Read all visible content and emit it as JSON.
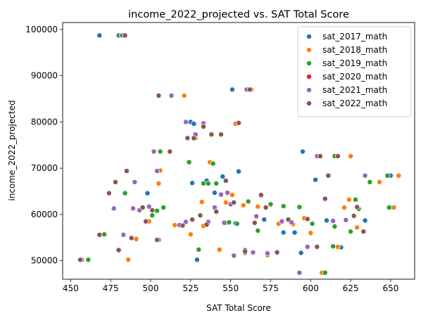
{
  "chart_data": {
    "type": "scatter",
    "title": "income_2022_projected vs. SAT Total Score",
    "xlabel": "SAT Total Score",
    "ylabel": "income_2022_projected",
    "xlim": [
      445,
      665
    ],
    "ylim": [
      46000,
      101500
    ],
    "xticks": [
      450,
      475,
      500,
      525,
      550,
      575,
      600,
      625,
      650
    ],
    "yticks": [
      50000,
      60000,
      70000,
      80000,
      90000,
      100000
    ],
    "legend_position": "top-right",
    "grid": false,
    "series": [
      {
        "name": "sat_2017_math",
        "color": "#1f77b4",
        "points": [
          [
            468,
            98700
          ],
          [
            498,
            64600
          ],
          [
            520,
            57600
          ],
          [
            525,
            80000
          ],
          [
            527,
            79600
          ],
          [
            526,
            66800
          ],
          [
            529,
            50200
          ],
          [
            535,
            67300
          ],
          [
            540,
            64700
          ],
          [
            545,
            68200
          ],
          [
            548,
            58200
          ],
          [
            551,
            87000
          ],
          [
            555,
            69300
          ],
          [
            559,
            52300
          ],
          [
            553,
            58100
          ],
          [
            571,
            58900
          ],
          [
            583,
            56100
          ],
          [
            590,
            56100
          ],
          [
            594,
            51700
          ],
          [
            595,
            73600
          ],
          [
            603,
            67500
          ],
          [
            610,
            58700
          ],
          [
            619,
            52900
          ],
          [
            634,
            58700
          ],
          [
            650,
            68400
          ],
          [
            651,
            61500
          ]
        ]
      },
      {
        "name": "sat_2018_math",
        "color": "#ff7f0e",
        "points": [
          [
            486,
            50200
          ],
          [
            491,
            54700
          ],
          [
            499,
            58500
          ],
          [
            501,
            60900
          ],
          [
            505,
            66700
          ],
          [
            506,
            69500
          ],
          [
            515,
            57700
          ],
          [
            521,
            85700
          ],
          [
            525,
            55700
          ],
          [
            528,
            76500
          ],
          [
            532,
            62700
          ],
          [
            533,
            57500
          ],
          [
            537,
            71300
          ],
          [
            543,
            52400
          ],
          [
            546,
            58300
          ],
          [
            547,
            62600
          ],
          [
            551,
            64200
          ],
          [
            553,
            79600
          ],
          [
            558,
            62000
          ],
          [
            563,
            87000
          ],
          [
            567,
            61700
          ],
          [
            573,
            51200
          ],
          [
            580,
            58000
          ],
          [
            589,
            57900
          ],
          [
            596,
            59200
          ],
          [
            600,
            56000
          ],
          [
            607,
            47400
          ],
          [
            617,
            53000
          ],
          [
            621,
            61500
          ],
          [
            624,
            63200
          ],
          [
            625,
            72600
          ],
          [
            629,
            57200
          ],
          [
            643,
            67000
          ],
          [
            655,
            68400
          ],
          [
            652,
            61500
          ]
        ]
      },
      {
        "name": "sat_2019_math",
        "color": "#2ca02c",
        "points": [
          [
            461,
            50200
          ],
          [
            471,
            55700
          ],
          [
            480,
            98700
          ],
          [
            484,
            64600
          ],
          [
            501,
            59800
          ],
          [
            504,
            60800
          ],
          [
            506,
            73600
          ],
          [
            508,
            61500
          ],
          [
            524,
            71300
          ],
          [
            530,
            52400
          ],
          [
            533,
            66700
          ],
          [
            536,
            66700
          ],
          [
            539,
            71000
          ],
          [
            541,
            66700
          ],
          [
            547,
            58200
          ],
          [
            549,
            58300
          ],
          [
            554,
            58000
          ],
          [
            559,
            51700
          ],
          [
            561,
            62800
          ],
          [
            567,
            56500
          ],
          [
            575,
            62200
          ],
          [
            583,
            61800
          ],
          [
            593,
            61600
          ],
          [
            601,
            58000
          ],
          [
            609,
            47400
          ],
          [
            614,
            53100
          ],
          [
            615,
            72600
          ],
          [
            615,
            57400
          ],
          [
            625,
            56300
          ],
          [
            628,
            63200
          ],
          [
            630,
            61200
          ],
          [
            637,
            67000
          ],
          [
            648,
            68400
          ],
          [
            649,
            61500
          ]
        ]
      },
      {
        "name": "sat_2020_math",
        "color": "#d62728",
        "points": []
      },
      {
        "name": "sat_2021_math",
        "color": "#9467bd",
        "points": [
          [
            457,
            50200
          ],
          [
            477,
            61300
          ],
          [
            482,
            98700
          ],
          [
            483,
            55600
          ],
          [
            489,
            61300
          ],
          [
            490,
            67000
          ],
          [
            493,
            60900
          ],
          [
            499,
            61700
          ],
          [
            502,
            73600
          ],
          [
            504,
            69400
          ],
          [
            505,
            54500
          ],
          [
            513,
            85700
          ],
          [
            518,
            57700
          ],
          [
            522,
            80000
          ],
          [
            522,
            58400
          ],
          [
            528,
            77300
          ],
          [
            533,
            79700
          ],
          [
            536,
            58400
          ],
          [
            540,
            61500
          ],
          [
            544,
            64300
          ],
          [
            546,
            58200
          ],
          [
            548,
            64700
          ],
          [
            550,
            62200
          ],
          [
            552,
            51100
          ],
          [
            560,
            87000
          ],
          [
            564,
            51800
          ],
          [
            566,
            59600
          ],
          [
            573,
            51600
          ],
          [
            582,
            58500
          ],
          [
            588,
            58300
          ],
          [
            593,
            47400
          ],
          [
            598,
            53000
          ],
          [
            604,
            72600
          ],
          [
            614,
            58600
          ],
          [
            622,
            58800
          ],
          [
            634,
            68400
          ]
        ]
      },
      {
        "name": "sat_2022_math",
        "color": "#8c564b",
        "points": [
          [
            456,
            50200
          ],
          [
            468,
            55600
          ],
          [
            474,
            64600
          ],
          [
            478,
            67000
          ],
          [
            480,
            52300
          ],
          [
            484,
            98700
          ],
          [
            485,
            69400
          ],
          [
            488,
            54900
          ],
          [
            495,
            61500
          ],
          [
            497,
            58500
          ],
          [
            501,
            60900
          ],
          [
            504,
            54500
          ],
          [
            505,
            85700
          ],
          [
            512,
            73600
          ],
          [
            520,
            57600
          ],
          [
            523,
            76500
          ],
          [
            526,
            58900
          ],
          [
            527,
            76500
          ],
          [
            531,
            59800
          ],
          [
            533,
            79000
          ],
          [
            535,
            57800
          ],
          [
            538,
            77300
          ],
          [
            541,
            60600
          ],
          [
            544,
            77300
          ],
          [
            547,
            67300
          ],
          [
            552,
            62600
          ],
          [
            555,
            79800
          ],
          [
            559,
            52000
          ],
          [
            562,
            87000
          ],
          [
            565,
            58200
          ],
          [
            569,
            64200
          ],
          [
            572,
            61500
          ],
          [
            579,
            51800
          ],
          [
            586,
            58900
          ],
          [
            598,
            59000
          ],
          [
            604,
            53000
          ],
          [
            606,
            72600
          ],
          [
            609,
            63400
          ],
          [
            611,
            68400
          ],
          [
            617,
            72600
          ],
          [
            627,
            59700
          ],
          [
            629,
            61600
          ],
          [
            633,
            56300
          ]
        ]
      }
    ]
  }
}
